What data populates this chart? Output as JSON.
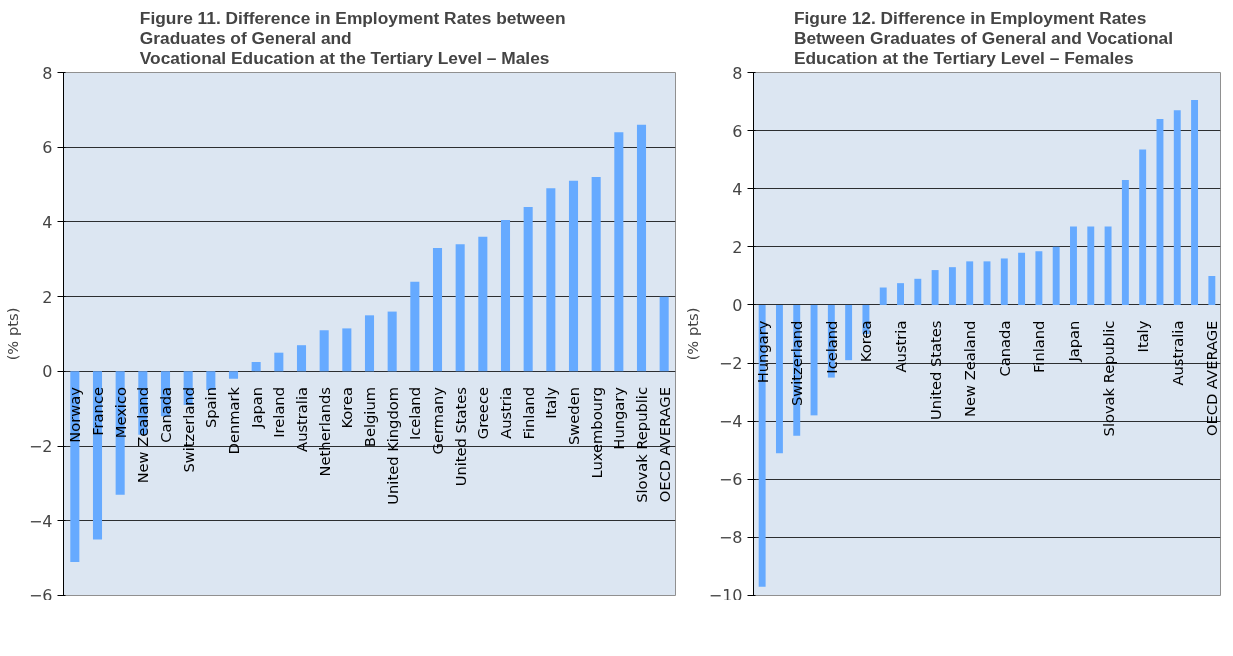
{
  "chart_data": [
    {
      "type": "bar",
      "title": "Figure 11.        Difference in Employment Rates between\nGraduates of General and\nVocational Education at the Tertiary Level – Males",
      "ylabel": "(% pts)",
      "categories": [
        "Norway",
        "France",
        "Mexico",
        "New Zealand",
        "Canada",
        "Switzerland",
        "Spain",
        "Denmark",
        "Japan",
        "Ireland",
        "Australia",
        "Netherlands",
        "Korea",
        "Belgium",
        "United Kingdom",
        "Iceland",
        "Germany",
        "United States",
        "Greece",
        "Austria",
        "Finland",
        "Italy",
        "Sweden",
        "Luxembourg",
        "Hungary",
        "Slovak Republic",
        "OECD AVERAGE"
      ],
      "values": [
        -5.1,
        -4.5,
        -3.3,
        -1.7,
        -1.2,
        -0.9,
        -0.5,
        -0.2,
        0.25,
        0.5,
        0.7,
        1.1,
        1.15,
        1.5,
        1.6,
        2.4,
        3.3,
        3.4,
        3.6,
        4.05,
        4.4,
        4.9,
        5.1,
        5.2,
        6.4,
        6.6,
        2.0
      ],
      "color": "#66aaff",
      "ylim": [
        -6,
        8
      ],
      "yticks": [
        -6,
        -4,
        -2,
        0,
        2,
        4,
        6,
        8
      ],
      "grid": "y"
    },
    {
      "type": "bar",
      "title": "Figure 12.        Difference in Employment Rates\nBetween Graduates of General and Vocational\nEducation at the Tertiary Level – Females",
      "ylabel": "(% pts)",
      "categories": [
        "Hungary",
        null,
        "Switzerland",
        null,
        "Iceland",
        null,
        "Korea",
        null,
        "Austria",
        null,
        "United States",
        null,
        "New Zealand",
        null,
        "Canada",
        null,
        "Finland",
        null,
        "Japan",
        null,
        "Slovak Republic",
        null,
        "Italy",
        null,
        "Australia",
        null,
        "OECD AVERAGE"
      ],
      "values": [
        -9.7,
        -5.1,
        -4.5,
        -3.8,
        -2.5,
        -1.9,
        -1.0,
        0.6,
        0.75,
        0.9,
        1.2,
        1.3,
        1.5,
        1.5,
        1.6,
        1.8,
        1.85,
        2.0,
        2.7,
        2.7,
        2.7,
        4.3,
        5.35,
        6.4,
        6.7,
        7.05,
        1.0
      ],
      "color": "#66aaff",
      "ylim": [
        -10,
        8
      ],
      "yticks": [
        -10,
        -8,
        -6,
        -4,
        -2,
        0,
        2,
        4,
        6,
        8
      ],
      "grid": "y"
    }
  ]
}
